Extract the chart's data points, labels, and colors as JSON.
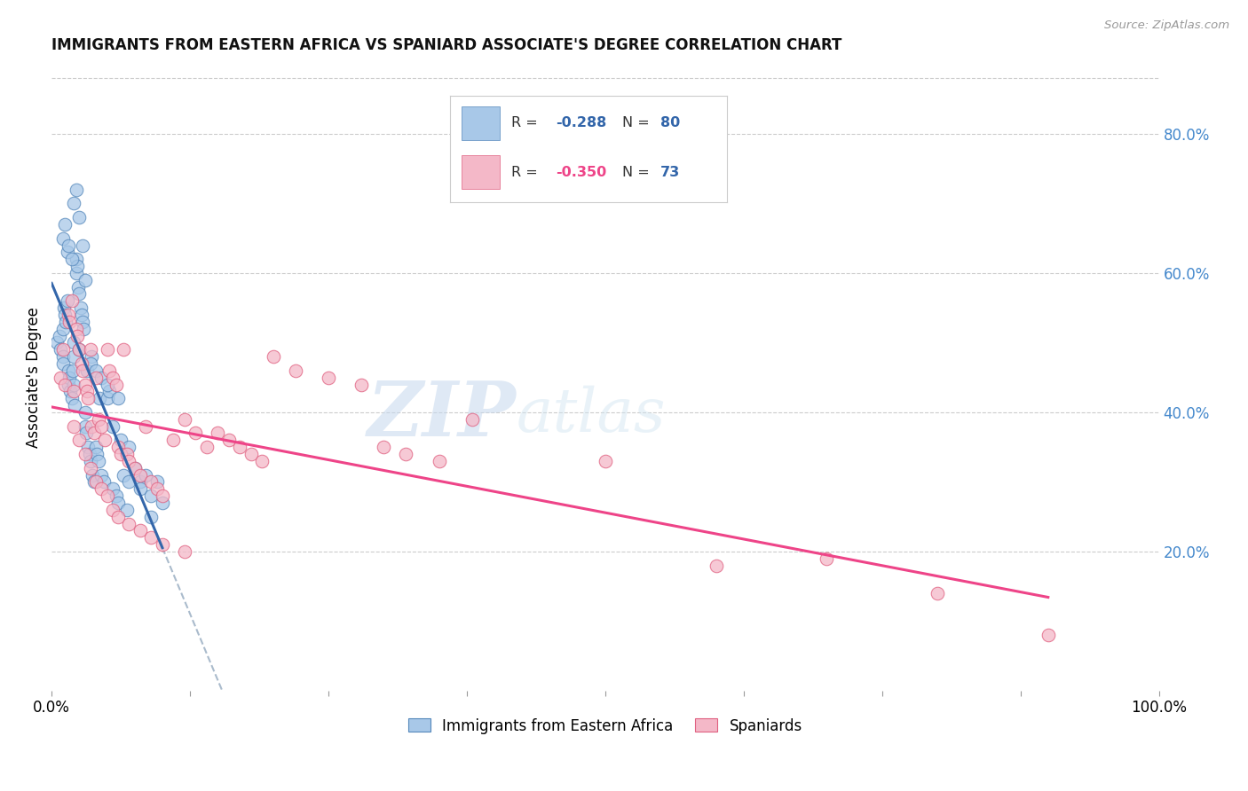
{
  "title": "IMMIGRANTS FROM EASTERN AFRICA VS SPANIARD ASSOCIATE'S DEGREE CORRELATION CHART",
  "source": "Source: ZipAtlas.com",
  "ylabel": "Associate's Degree",
  "ytick_labels": [
    "20.0%",
    "40.0%",
    "60.0%",
    "80.0%"
  ],
  "ytick_positions": [
    0.2,
    0.4,
    0.6,
    0.8
  ],
  "xlim": [
    0.0,
    1.0
  ],
  "ylim": [
    0.0,
    0.9
  ],
  "color_blue": "#a8c8e8",
  "color_pink": "#f4b8c8",
  "color_blue_edge": "#5588bb",
  "color_pink_edge": "#e06080",
  "color_trend_blue": "#3366aa",
  "color_trend_pink": "#ee4488",
  "color_trend_dashed": "#aabbcc",
  "background": "#ffffff",
  "watermark_zip": "ZIP",
  "watermark_atlas": "atlas",
  "legend_label_blue": "Immigrants from Eastern Africa",
  "legend_label_pink": "Spaniards",
  "blue_r": "-0.288",
  "blue_n": "80",
  "pink_r": "-0.350",
  "pink_n": "73",
  "blue_x": [
    0.005,
    0.007,
    0.008,
    0.01,
    0.01,
    0.01,
    0.011,
    0.012,
    0.013,
    0.014,
    0.015,
    0.015,
    0.016,
    0.017,
    0.018,
    0.019,
    0.02,
    0.02,
    0.02,
    0.021,
    0.022,
    0.022,
    0.023,
    0.024,
    0.025,
    0.025,
    0.026,
    0.027,
    0.028,
    0.029,
    0.03,
    0.03,
    0.031,
    0.032,
    0.033,
    0.034,
    0.035,
    0.036,
    0.037,
    0.038,
    0.04,
    0.041,
    0.042,
    0.043,
    0.045,
    0.047,
    0.05,
    0.052,
    0.055,
    0.058,
    0.06,
    0.062,
    0.065,
    0.068,
    0.07,
    0.075,
    0.08,
    0.085,
    0.09,
    0.095,
    0.01,
    0.012,
    0.014,
    0.015,
    0.018,
    0.02,
    0.022,
    0.025,
    0.028,
    0.03,
    0.035,
    0.04,
    0.045,
    0.05,
    0.055,
    0.06,
    0.07,
    0.08,
    0.09,
    0.1
  ],
  "blue_y": [
    0.5,
    0.51,
    0.49,
    0.52,
    0.48,
    0.47,
    0.55,
    0.54,
    0.53,
    0.56,
    0.44,
    0.46,
    0.45,
    0.43,
    0.42,
    0.46,
    0.5,
    0.48,
    0.44,
    0.41,
    0.6,
    0.62,
    0.61,
    0.58,
    0.57,
    0.49,
    0.55,
    0.54,
    0.53,
    0.52,
    0.4,
    0.38,
    0.37,
    0.46,
    0.35,
    0.34,
    0.33,
    0.48,
    0.31,
    0.3,
    0.35,
    0.34,
    0.33,
    0.42,
    0.31,
    0.3,
    0.42,
    0.43,
    0.29,
    0.28,
    0.27,
    0.36,
    0.31,
    0.26,
    0.35,
    0.32,
    0.3,
    0.31,
    0.25,
    0.3,
    0.65,
    0.67,
    0.63,
    0.64,
    0.62,
    0.7,
    0.72,
    0.68,
    0.64,
    0.59,
    0.47,
    0.46,
    0.45,
    0.44,
    0.38,
    0.42,
    0.3,
    0.29,
    0.28,
    0.27
  ],
  "pink_x": [
    0.008,
    0.01,
    0.012,
    0.015,
    0.016,
    0.018,
    0.02,
    0.022,
    0.023,
    0.025,
    0.027,
    0.028,
    0.03,
    0.032,
    0.033,
    0.035,
    0.036,
    0.038,
    0.04,
    0.042,
    0.045,
    0.048,
    0.05,
    0.052,
    0.055,
    0.058,
    0.06,
    0.062,
    0.065,
    0.068,
    0.07,
    0.075,
    0.08,
    0.085,
    0.09,
    0.095,
    0.1,
    0.11,
    0.12,
    0.13,
    0.14,
    0.15,
    0.16,
    0.17,
    0.18,
    0.19,
    0.2,
    0.22,
    0.25,
    0.28,
    0.3,
    0.32,
    0.35,
    0.02,
    0.025,
    0.03,
    0.035,
    0.04,
    0.045,
    0.05,
    0.055,
    0.06,
    0.07,
    0.08,
    0.09,
    0.1,
    0.12,
    0.5,
    0.6,
    0.7,
    0.8,
    0.9,
    0.38
  ],
  "pink_y": [
    0.45,
    0.49,
    0.44,
    0.54,
    0.53,
    0.56,
    0.43,
    0.52,
    0.51,
    0.49,
    0.47,
    0.46,
    0.44,
    0.43,
    0.42,
    0.49,
    0.38,
    0.37,
    0.45,
    0.39,
    0.38,
    0.36,
    0.49,
    0.46,
    0.45,
    0.44,
    0.35,
    0.34,
    0.49,
    0.34,
    0.33,
    0.32,
    0.31,
    0.38,
    0.3,
    0.29,
    0.28,
    0.36,
    0.39,
    0.37,
    0.35,
    0.37,
    0.36,
    0.35,
    0.34,
    0.33,
    0.48,
    0.46,
    0.45,
    0.44,
    0.35,
    0.34,
    0.33,
    0.38,
    0.36,
    0.34,
    0.32,
    0.3,
    0.29,
    0.28,
    0.26,
    0.25,
    0.24,
    0.23,
    0.22,
    0.21,
    0.2,
    0.33,
    0.18,
    0.19,
    0.14,
    0.08,
    0.39
  ]
}
